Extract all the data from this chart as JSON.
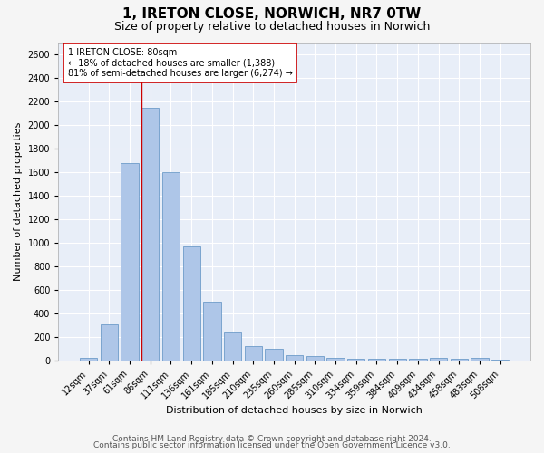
{
  "title": "1, IRETON CLOSE, NORWICH, NR7 0TW",
  "subtitle": "Size of property relative to detached houses in Norwich",
  "xlabel": "Distribution of detached houses by size in Norwich",
  "ylabel": "Number of detached properties",
  "categories": [
    "12sqm",
    "37sqm",
    "61sqm",
    "86sqm",
    "111sqm",
    "136sqm",
    "161sqm",
    "185sqm",
    "210sqm",
    "235sqm",
    "260sqm",
    "285sqm",
    "310sqm",
    "334sqm",
    "359sqm",
    "384sqm",
    "409sqm",
    "434sqm",
    "458sqm",
    "483sqm",
    "508sqm"
  ],
  "values": [
    20,
    305,
    1680,
    2150,
    1600,
    970,
    500,
    248,
    125,
    100,
    48,
    35,
    20,
    18,
    16,
    14,
    12,
    20,
    12,
    20,
    8
  ],
  "bar_color": "#aec6e8",
  "bar_edge_color": "#5a8fc2",
  "vline_index": 3,
  "vline_color": "#cc0000",
  "annotation_text": "1 IRETON CLOSE: 80sqm\n← 18% of detached houses are smaller (1,388)\n81% of semi-detached houses are larger (6,274) →",
  "annotation_box_color": "#ffffff",
  "annotation_box_edge_color": "#cc0000",
  "ylim": [
    0,
    2700
  ],
  "yticks": [
    0,
    200,
    400,
    600,
    800,
    1000,
    1200,
    1400,
    1600,
    1800,
    2000,
    2200,
    2400,
    2600
  ],
  "footer1": "Contains HM Land Registry data © Crown copyright and database right 2024.",
  "footer2": "Contains public sector information licensed under the Open Government Licence v3.0.",
  "background_color": "#e8eef8",
  "grid_color": "#ffffff",
  "title_fontsize": 11,
  "subtitle_fontsize": 9,
  "label_fontsize": 8,
  "tick_fontsize": 7,
  "footer_fontsize": 6.5,
  "fig_facecolor": "#f5f5f5"
}
